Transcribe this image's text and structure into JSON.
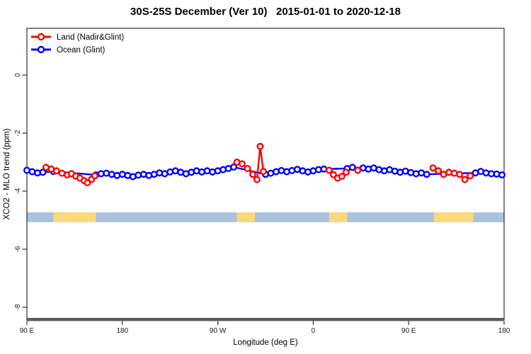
{
  "title": "30S-25S December (Ver 10)   2015-01-01 to 2020-12-18",
  "legend": [
    {
      "label": "Land (Nadir&Glint)",
      "color": "#ff0000"
    },
    {
      "label": "Ocean (Glint)",
      "color": "#0000ff"
    }
  ],
  "colors": {
    "land_series": "#ff0000",
    "ocean_series": "#0000ff",
    "band_ocean": "#a9c2df",
    "band_land": "#fbd97b",
    "axis_box": "#2e2e2e",
    "bottom_axis_bar": "#5c5c5c",
    "marker_fill": "#ffffff"
  },
  "chart_data": {
    "type": "line",
    "title": "30S-25S December (Ver 10)   2015-01-01 to 2020-12-18",
    "xlabel": "Longitude (deg E)",
    "ylabel": "XCO2 - MLO trend (ppm)",
    "x_axis_note": "x is degrees east of 90E, axis wraps 90E-180-90W-0-90E-180",
    "xlim": [
      0,
      450
    ],
    "ylim": [
      -8.44,
      1.61
    ],
    "grid": false,
    "legend_position": "top-left inside",
    "x_ticks": [
      {
        "t": 0,
        "label": "90 E"
      },
      {
        "t": 90,
        "label": "180"
      },
      {
        "t": 180,
        "label": "90 W"
      },
      {
        "t": 270,
        "label": "0"
      },
      {
        "t": 360,
        "label": "90 E"
      },
      {
        "t": 450,
        "label": "180"
      }
    ],
    "y_ticks": [
      {
        "v": 0,
        "label": "0"
      },
      {
        "v": -2,
        "label": "-2"
      },
      {
        "v": -4,
        "label": "-4"
      },
      {
        "v": -6,
        "label": "-6"
      },
      {
        "v": -8,
        "label": "-8"
      }
    ],
    "series": [
      {
        "name": "Ocean (Glint)",
        "color": "#0000ff",
        "marker": "open-circle",
        "segments": [
          [
            [
              0,
              -3.28
            ],
            [
              5,
              -3.33
            ],
            [
              10,
              -3.37
            ],
            [
              15,
              -3.35
            ],
            [
              20,
              -3.25
            ],
            [
              25,
              -3.32
            ],
            [
              65,
              -3.44
            ],
            [
              70,
              -3.4
            ],
            [
              75,
              -3.38
            ],
            [
              80,
              -3.42
            ],
            [
              85,
              -3.46
            ],
            [
              90,
              -3.42
            ],
            [
              95,
              -3.46
            ],
            [
              100,
              -3.5
            ],
            [
              105,
              -3.45
            ],
            [
              110,
              -3.42
            ],
            [
              115,
              -3.46
            ],
            [
              120,
              -3.42
            ],
            [
              125,
              -3.37
            ],
            [
              130,
              -3.4
            ],
            [
              135,
              -3.34
            ],
            [
              140,
              -3.3
            ],
            [
              145,
              -3.35
            ],
            [
              150,
              -3.4
            ],
            [
              155,
              -3.35
            ],
            [
              160,
              -3.3
            ],
            [
              165,
              -3.34
            ],
            [
              170,
              -3.3
            ],
            [
              175,
              -3.34
            ],
            [
              180,
              -3.3
            ],
            [
              185,
              -3.26
            ],
            [
              190,
              -3.22
            ],
            [
              195,
              -3.17
            ],
            [
              225,
              -3.42
            ],
            [
              230,
              -3.38
            ],
            [
              235,
              -3.33
            ],
            [
              240,
              -3.29
            ],
            [
              245,
              -3.33
            ],
            [
              250,
              -3.29
            ],
            [
              255,
              -3.25
            ],
            [
              260,
              -3.3
            ],
            [
              265,
              -3.34
            ],
            [
              270,
              -3.3
            ],
            [
              275,
              -3.26
            ],
            [
              280,
              -3.24
            ],
            [
              302,
              -3.22
            ],
            [
              307,
              -3.18
            ],
            [
              317,
              -3.2
            ],
            [
              322,
              -3.24
            ],
            [
              327,
              -3.2
            ],
            [
              332,
              -3.26
            ],
            [
              337,
              -3.3
            ],
            [
              342,
              -3.26
            ],
            [
              347,
              -3.31
            ],
            [
              352,
              -3.35
            ],
            [
              357,
              -3.31
            ],
            [
              362,
              -3.36
            ],
            [
              367,
              -3.4
            ],
            [
              372,
              -3.37
            ],
            [
              377,
              -3.42
            ],
            [
              423,
              -3.37
            ],
            [
              428,
              -3.32
            ],
            [
              433,
              -3.37
            ],
            [
              438,
              -3.4
            ],
            [
              443,
              -3.41
            ],
            [
              448,
              -3.44
            ]
          ]
        ]
      },
      {
        "name": "Land (Nadir&Glint)",
        "color": "#ff0000",
        "marker": "open-circle",
        "segments": [
          [
            [
              18,
              -3.18
            ],
            [
              23,
              -3.24
            ],
            [
              28,
              -3.3
            ],
            [
              33,
              -3.38
            ],
            [
              38,
              -3.44
            ],
            [
              42,
              -3.4
            ],
            [
              46,
              -3.48
            ],
            [
              50,
              -3.55
            ],
            [
              54,
              -3.64
            ],
            [
              57,
              -3.71
            ],
            [
              61,
              -3.59
            ],
            [
              64,
              -3.47
            ]
          ],
          [
            [
              198,
              -3.0
            ],
            [
              203,
              -3.06
            ],
            [
              208,
              -3.22
            ],
            [
              213,
              -3.42
            ],
            [
              217,
              -3.6
            ],
            [
              220,
              -2.46
            ],
            [
              223,
              -3.32
            ]
          ],
          [
            [
              285,
              -3.28
            ],
            [
              289,
              -3.43
            ],
            [
              293,
              -3.55
            ],
            [
              297,
              -3.49
            ],
            [
              301,
              -3.35
            ]
          ],
          [
            [
              312,
              -3.28
            ]
          ],
          [
            [
              383,
              -3.2
            ],
            [
              388,
              -3.3
            ],
            [
              393,
              -3.42
            ],
            [
              398,
              -3.35
            ],
            [
              403,
              -3.38
            ],
            [
              408,
              -3.42
            ],
            [
              413,
              -3.6
            ],
            [
              418,
              -3.47
            ]
          ]
        ]
      }
    ],
    "surface_band": {
      "description": "ocean/land indicator strip",
      "value_top": -4.73,
      "value_bottom": -5.07,
      "extent_t": [
        0,
        450
      ],
      "land_segments_t": [
        [
          25,
          65
        ],
        [
          198,
          215
        ],
        [
          285,
          302
        ],
        [
          384,
          421
        ]
      ]
    }
  }
}
